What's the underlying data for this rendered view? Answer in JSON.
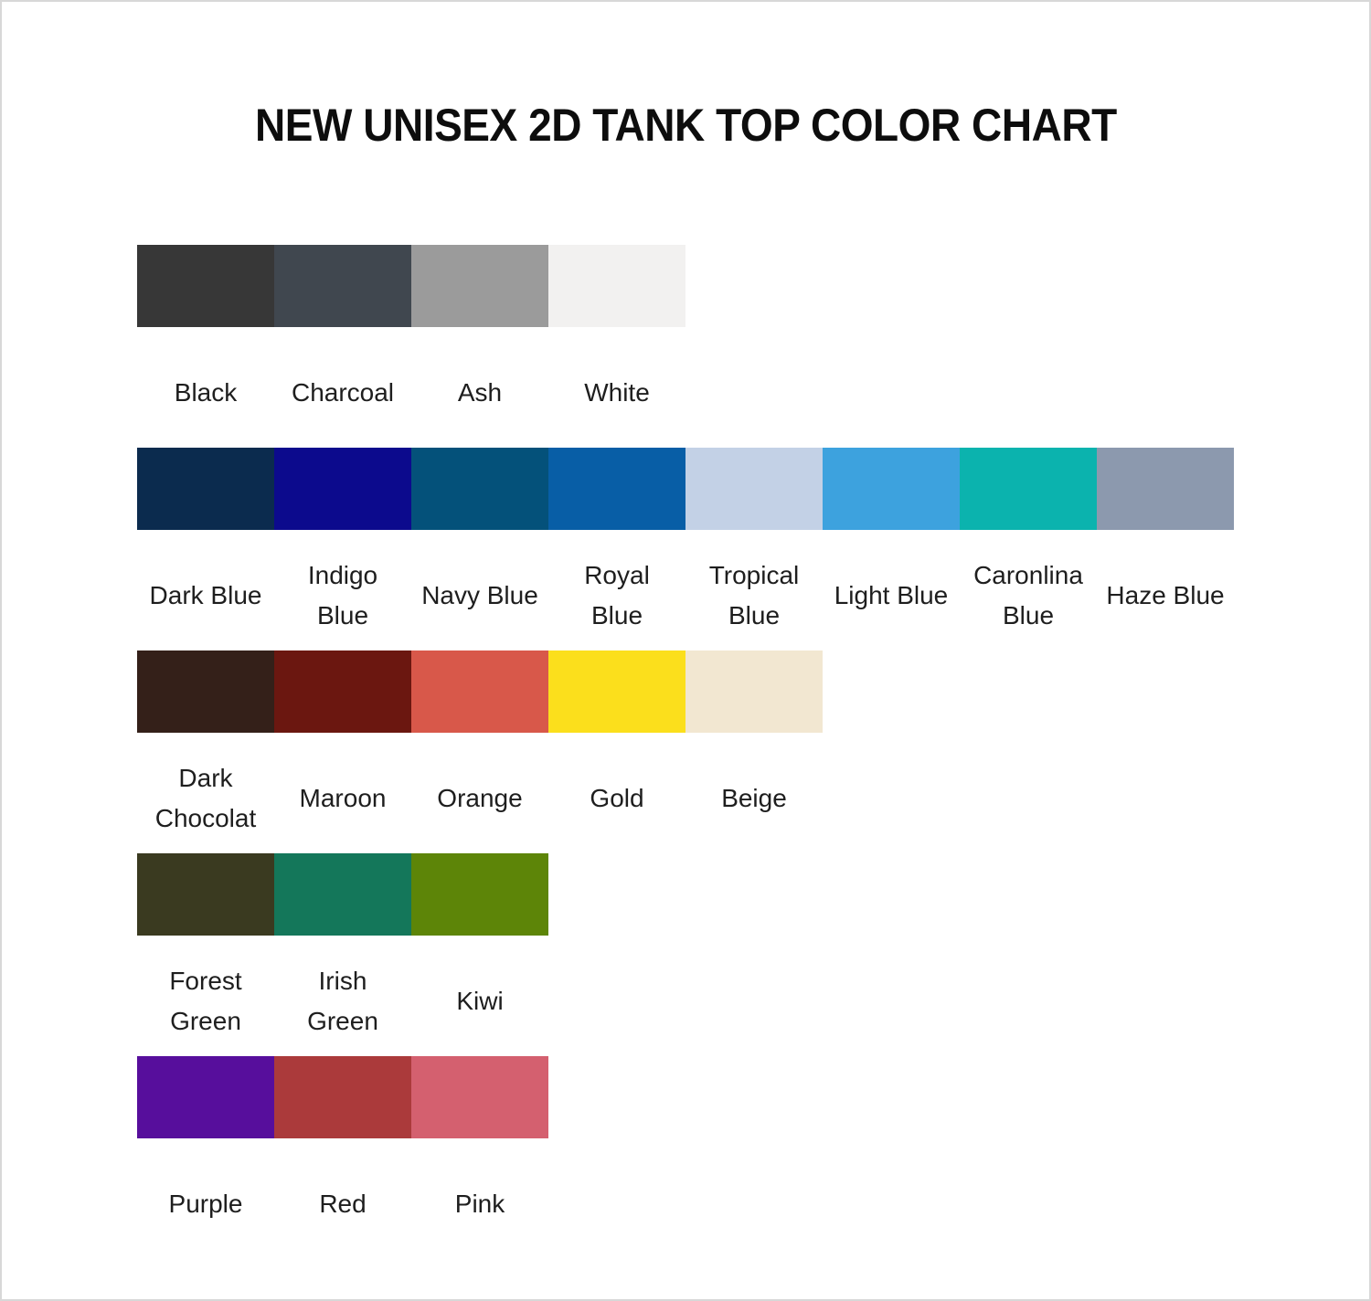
{
  "title": "NEW UNISEX 2D TANK TOP COLOR CHART",
  "rows": [
    {
      "swatches": [
        {
          "label": "Black",
          "color": "#373737"
        },
        {
          "label": "Charcoal",
          "color": "#40474f"
        },
        {
          "label": "Ash",
          "color": "#9b9b9b"
        },
        {
          "label": "White",
          "color": "#f2f1f0"
        }
      ]
    },
    {
      "swatches": [
        {
          "label": "Dark Blue",
          "color": "#0b2b4e"
        },
        {
          "label": "Indigo\nBlue",
          "color": "#0c0a8d"
        },
        {
          "label": "Navy Blue",
          "color": "#04517a"
        },
        {
          "label": "Royal\nBlue",
          "color": "#085ea6"
        },
        {
          "label": "Tropical\nBlue",
          "color": "#c3d1e6"
        },
        {
          "label": "Light Blue",
          "color": "#3da2de"
        },
        {
          "label": "Caronlina\nBlue",
          "color": "#0bb3ae"
        },
        {
          "label": "Haze Blue",
          "color": "#8c99ae"
        }
      ]
    },
    {
      "swatches": [
        {
          "label": "Dark\nChocolat",
          "color": "#342019"
        },
        {
          "label": "Maroon",
          "color": "#6b1710"
        },
        {
          "label": "Orange",
          "color": "#d8584a"
        },
        {
          "label": "Gold",
          "color": "#fbdf1c"
        },
        {
          "label": "Beige",
          "color": "#f2e7d1"
        }
      ]
    },
    {
      "swatches": [
        {
          "label": "Forest\nGreen",
          "color": "#3a3a20"
        },
        {
          "label": "Irish\nGreen",
          "color": "#14775a"
        },
        {
          "label": "Kiwi",
          "color": "#5d8508"
        }
      ]
    },
    {
      "swatches": [
        {
          "label": "Purple",
          "color": "#570e9c"
        },
        {
          "label": "Red",
          "color": "#ab3a3b"
        },
        {
          "label": "Pink",
          "color": "#d4606f"
        }
      ]
    }
  ]
}
